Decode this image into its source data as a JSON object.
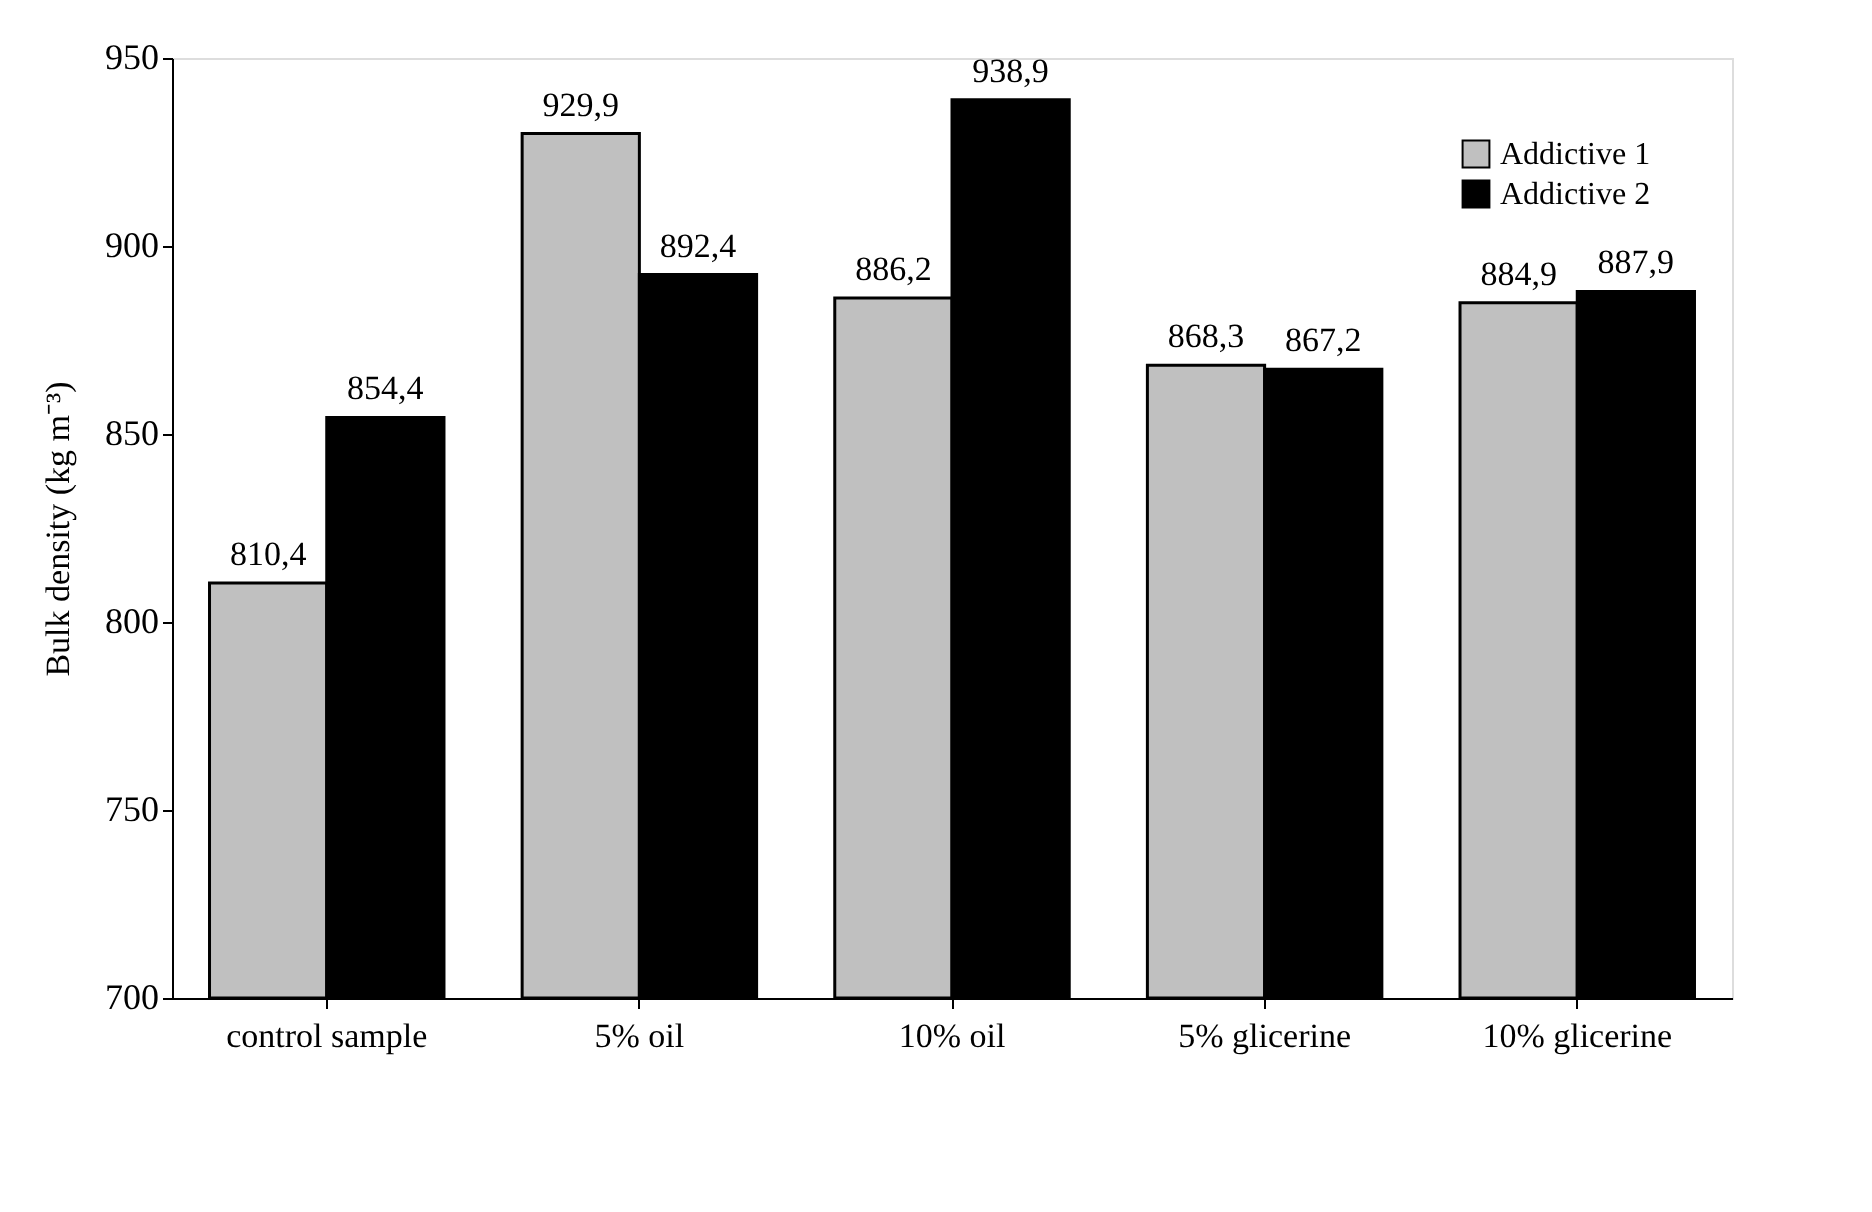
{
  "chart_data": {
    "type": "bar",
    "ylabel": "Bulk density (kg m⁻³)",
    "categories": [
      "control sample",
      "5% oil",
      "10% oil",
      "5% glicerine",
      "10% glicerine"
    ],
    "series": [
      {
        "name": "Addictive 1",
        "color": "#c0c0c0",
        "values": [
          810.4,
          929.9,
          886.2,
          868.3,
          884.9
        ],
        "value_labels": [
          "810,4",
          "929,9",
          "886,2",
          "868,3",
          "884,9"
        ]
      },
      {
        "name": "Addictive 2",
        "color": "#000000",
        "values": [
          854.4,
          892.4,
          938.9,
          867.2,
          887.9
        ],
        "value_labels": [
          "854,4",
          "892,4",
          "938,9",
          "867,2",
          "887,9"
        ]
      }
    ],
    "ylim": [
      700,
      950
    ],
    "yticks": [
      700,
      750,
      800,
      850,
      900,
      950
    ],
    "grid": false,
    "legend": "top right"
  }
}
